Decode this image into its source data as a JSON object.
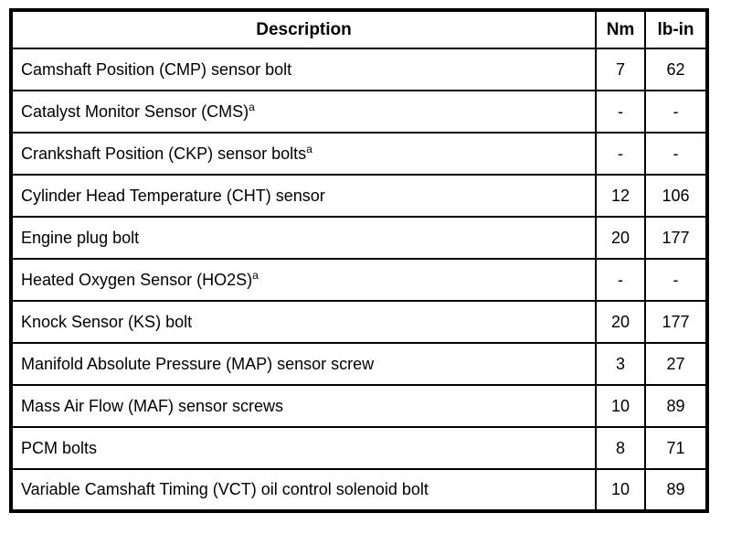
{
  "document": {
    "type": "torque-specification-table",
    "colors": {
      "border": "#000000",
      "text": "#000000",
      "background": "#ffffff"
    },
    "headers": {
      "description": "Description",
      "nm": "Nm",
      "lbin": "lb-in"
    },
    "rows": [
      {
        "description": "Camshaft Position (CMP) sensor bolt",
        "footnote": "",
        "nm": "7",
        "lbin": "62"
      },
      {
        "description": "Catalyst Monitor Sensor (CMS)",
        "footnote": "a",
        "nm": "-",
        "lbin": "-"
      },
      {
        "description": "Crankshaft Position (CKP) sensor bolts",
        "footnote": "a",
        "nm": "-",
        "lbin": "-"
      },
      {
        "description": "Cylinder Head Temperature (CHT) sensor",
        "footnote": "",
        "nm": "12",
        "lbin": "106"
      },
      {
        "description": "Engine plug bolt",
        "footnote": "",
        "nm": "20",
        "lbin": "177"
      },
      {
        "description": "Heated Oxygen Sensor (HO2S)",
        "footnote": "a",
        "nm": "-",
        "lbin": "-"
      },
      {
        "description": "Knock Sensor (KS) bolt",
        "footnote": "",
        "nm": "20",
        "lbin": "177"
      },
      {
        "description": "Manifold Absolute Pressure (MAP) sensor screw",
        "footnote": "",
        "nm": "3",
        "lbin": "27"
      },
      {
        "description": "Mass Air Flow (MAF) sensor screws",
        "footnote": "",
        "nm": "10",
        "lbin": "89"
      },
      {
        "description": "PCM bolts",
        "footnote": "",
        "nm": "8",
        "lbin": "71"
      },
      {
        "description": "Variable Camshaft Timing (VCT) oil control solenoid bolt",
        "footnote": "",
        "nm": "10",
        "lbin": "89"
      }
    ]
  }
}
